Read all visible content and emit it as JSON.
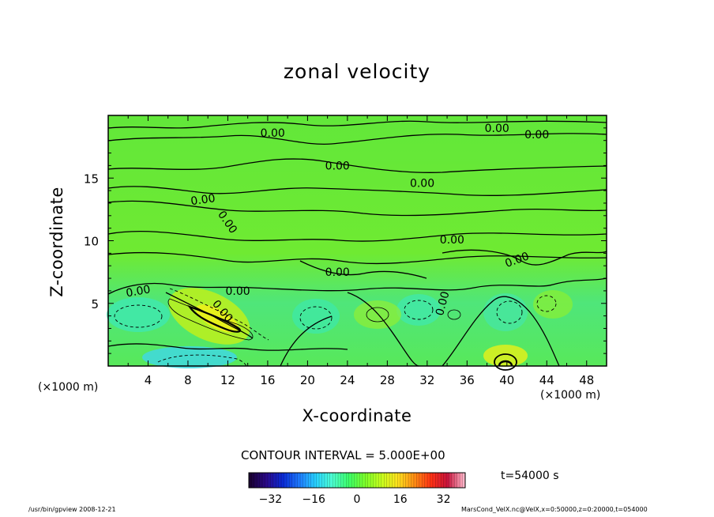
{
  "chart_data": {
    "type": "contour",
    "title": "zonal velocity",
    "xlabel": "X-coordinate",
    "ylabel": "Z-coordinate",
    "x_unit_label": "(×1000 m)",
    "xlim": [
      0,
      50
    ],
    "ylim": [
      0,
      20
    ],
    "x_ticks": [
      "4",
      "8",
      "12",
      "16",
      "20",
      "24",
      "28",
      "32",
      "36",
      "40",
      "44",
      "48"
    ],
    "y_ticks": [
      "5",
      "10",
      "15"
    ],
    "contour_labels": [
      "0.00",
      "0.00",
      "0.00",
      "0.00",
      "0.00",
      "0.00",
      "0.00",
      "0.00",
      "0.00",
      "0.00",
      "0.00",
      "0.00",
      "0.00",
      "0.00"
    ],
    "contour_interval_text": "CONTOUR INTERVAL = 5.000E+00",
    "time_text": "t=54000 s",
    "colorbar": {
      "range": [
        -40,
        40
      ],
      "ticks": [
        "−32",
        "−16",
        "0",
        "16",
        "32"
      ],
      "colors": [
        "#1a0033",
        "#2b0a8a",
        "#0a2bd6",
        "#1e7bff",
        "#28d2ff",
        "#4dffd2",
        "#3cff6a",
        "#7dff2a",
        "#c8ff1e",
        "#ffe01e",
        "#ff8c14",
        "#ff3214",
        "#c8143c",
        "#ffb4c8"
      ]
    },
    "footer_left": "/usr/bin/gpview   2008-12-21",
    "footer_right": "MarsCond_VelX.nc@VelX,x=0:50000,z=0:20000,t=054000"
  }
}
